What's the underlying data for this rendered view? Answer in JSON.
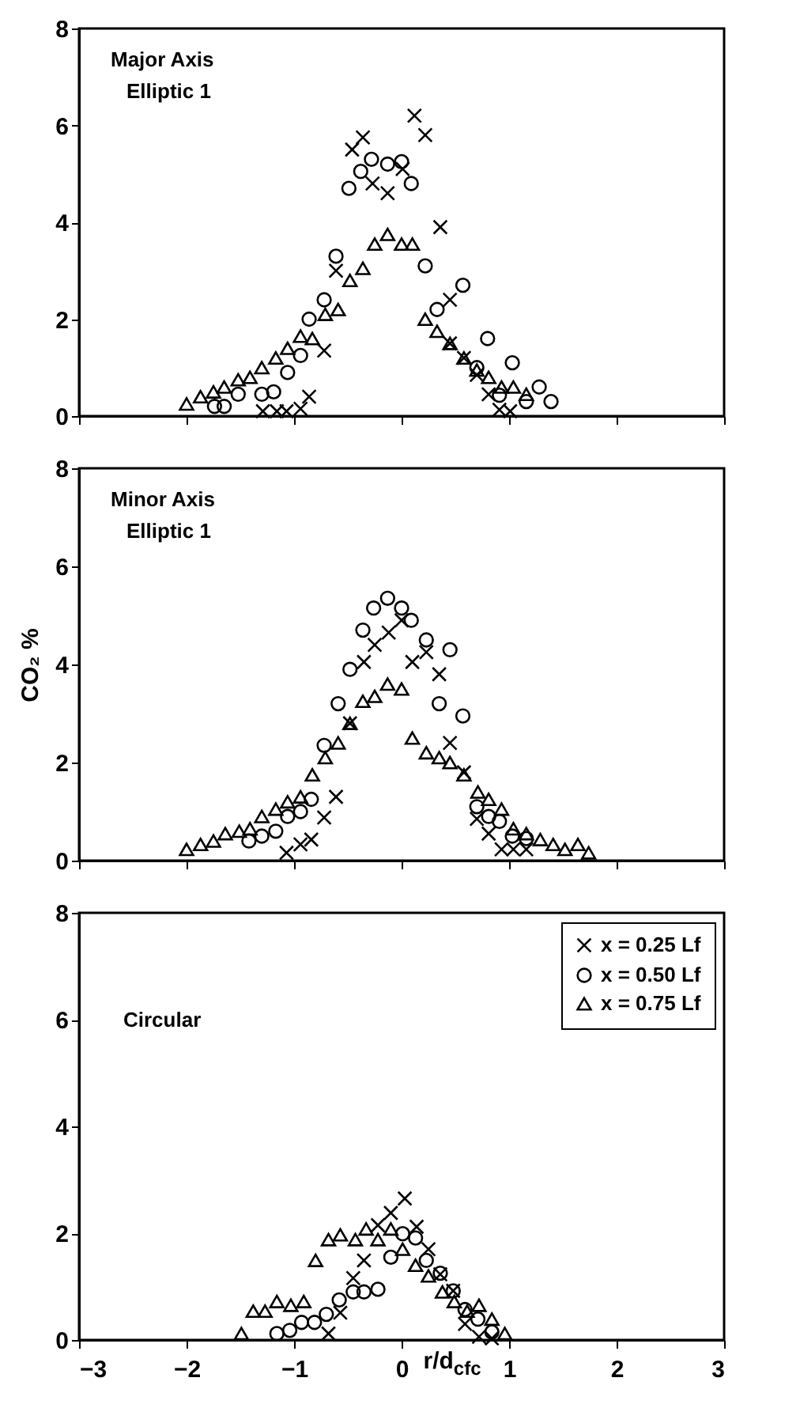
{
  "chart_data": [
    {
      "type": "scatter",
      "annotations": [
        "Major Axis",
        "Elliptic 1"
      ],
      "xlim": [
        -3,
        3
      ],
      "xticks": [
        -3,
        -2,
        -1,
        0,
        1,
        2,
        3
      ],
      "ylim": [
        0,
        8
      ],
      "yticks": [
        0,
        2,
        4,
        6,
        8
      ],
      "tick_labels": "y",
      "grid": false,
      "series": [
        {
          "marker": "cross",
          "color": "#000000",
          "x": [
            -1.29,
            -1.16,
            -1.07,
            -0.94,
            -0.86,
            -0.72,
            -0.61,
            -0.46,
            -0.36,
            -0.27,
            -0.13,
            0.01,
            0.12,
            0.22,
            0.36,
            0.45,
            0.45,
            0.58,
            0.7,
            0.81,
            0.91,
            1.01
          ],
          "values": [
            0.1,
            0.1,
            0.1,
            0.15,
            0.4,
            1.35,
            3.0,
            5.5,
            5.75,
            4.8,
            4.6,
            5.1,
            6.2,
            5.8,
            3.9,
            2.4,
            1.5,
            1.2,
            0.85,
            0.45,
            0.13,
            0.1
          ]
        },
        {
          "marker": "circle",
          "color": "#000000",
          "x": [
            -1.74,
            -1.65,
            -1.52,
            -1.3,
            -1.19,
            -1.06,
            -0.94,
            -0.86,
            -0.72,
            -0.61,
            -0.49,
            -0.38,
            -0.28,
            -0.13,
            0,
            0.09,
            0.22,
            0.33,
            0.57,
            0.7,
            0.8,
            0.91,
            1.03,
            1.16,
            1.28,
            1.39
          ],
          "values": [
            0.2,
            0.2,
            0.45,
            0.45,
            0.5,
            0.9,
            1.25,
            2.0,
            2.4,
            3.3,
            4.7,
            5.05,
            5.3,
            5.2,
            5.25,
            4.8,
            3.1,
            2.2,
            2.7,
            1.0,
            1.6,
            0.43,
            1.1,
            0.3,
            0.6,
            0.3
          ]
        },
        {
          "marker": "triangle",
          "color": "#000000",
          "x": [
            -2.0,
            -1.87,
            -1.75,
            -1.65,
            -1.52,
            -1.41,
            -1.3,
            -1.17,
            -1.06,
            -0.94,
            -0.83,
            -0.71,
            -0.59,
            -0.48,
            -0.36,
            -0.25,
            -0.13,
            0,
            0.1,
            0.22,
            0.33,
            0.45,
            0.58,
            0.7,
            0.81,
            0.93,
            1.04,
            1.16
          ],
          "values": [
            0.25,
            0.4,
            0.5,
            0.6,
            0.75,
            0.8,
            1.0,
            1.2,
            1.4,
            1.65,
            1.6,
            2.1,
            2.2,
            2.8,
            3.05,
            3.55,
            3.75,
            3.55,
            3.55,
            2.0,
            1.75,
            1.5,
            1.2,
            0.95,
            0.8,
            0.6,
            0.6,
            0.45
          ]
        }
      ]
    },
    {
      "type": "scatter",
      "annotations": [
        "Minor Axis",
        "Elliptic 1"
      ],
      "ylabel": "CO₂ %",
      "xlim": [
        -3,
        3
      ],
      "xticks": [
        -3,
        -2,
        -1,
        0,
        1,
        2,
        3
      ],
      "ylim": [
        0,
        8
      ],
      "yticks": [
        0,
        2,
        4,
        6,
        8
      ],
      "tick_labels": "y",
      "grid": false,
      "series": [
        {
          "marker": "cross",
          "color": "#000000",
          "x": [
            -1.07,
            -0.94,
            -0.84,
            -0.72,
            -0.61,
            -0.48,
            -0.35,
            -0.25,
            -0.12,
            0,
            0.1,
            0.23,
            0.35,
            0.45,
            0.58,
            0.7,
            0.81,
            0.93,
            1.04,
            1.16
          ],
          "values": [
            0.16,
            0.33,
            0.43,
            0.88,
            1.3,
            2.8,
            4.05,
            4.4,
            4.65,
            4.9,
            4.05,
            4.25,
            3.8,
            2.4,
            1.8,
            0.85,
            0.55,
            0.23,
            0.23,
            0.23
          ]
        },
        {
          "marker": "circle",
          "color": "#000000",
          "x": [
            -1.42,
            -1.3,
            -1.17,
            -1.06,
            -0.94,
            -0.84,
            -0.72,
            -0.59,
            -0.48,
            -0.36,
            -0.26,
            -0.13,
            0,
            0.09,
            0.23,
            0.35,
            0.45,
            0.57,
            0.7,
            0.81,
            0.91,
            1.03,
            1.16
          ],
          "values": [
            0.4,
            0.5,
            0.6,
            0.9,
            1.0,
            1.25,
            2.35,
            3.2,
            3.9,
            4.7,
            5.15,
            5.35,
            5.15,
            4.9,
            4.5,
            3.2,
            4.3,
            2.95,
            1.1,
            0.9,
            0.8,
            0.5,
            0.45
          ]
        },
        {
          "marker": "triangle",
          "color": "#000000",
          "x": [
            -2.0,
            -1.87,
            -1.75,
            -1.64,
            -1.51,
            -1.41,
            -1.3,
            -1.17,
            -1.06,
            -0.94,
            -0.83,
            -0.71,
            -0.59,
            -0.48,
            -0.36,
            -0.25,
            -0.13,
            0,
            0.1,
            0.23,
            0.35,
            0.45,
            0.58,
            0.71,
            0.81,
            0.93,
            1.04,
            1.16,
            1.29,
            1.41,
            1.52,
            1.64,
            1.74
          ],
          "values": [
            0.23,
            0.33,
            0.4,
            0.55,
            0.6,
            0.65,
            0.9,
            1.05,
            1.2,
            1.3,
            1.75,
            2.1,
            2.4,
            2.8,
            3.25,
            3.35,
            3.6,
            3.5,
            2.5,
            2.2,
            2.1,
            2.0,
            1.75,
            1.4,
            1.25,
            1.05,
            0.65,
            0.55,
            0.43,
            0.33,
            0.23,
            0.33,
            0.16
          ]
        }
      ]
    },
    {
      "type": "scatter",
      "annotations": [
        "Circular"
      ],
      "xlabel": "r/d$_{cfc}$",
      "xlim": [
        -3,
        3
      ],
      "xticks": [
        -3,
        -2,
        -1,
        0,
        1,
        2,
        3
      ],
      "ylim": [
        0,
        8
      ],
      "yticks": [
        0,
        2,
        4,
        6,
        8
      ],
      "grid": false,
      "legend": "top right",
      "series": [
        {
          "name": "x = 0.25 Lf",
          "marker": "cross",
          "color": "#000000",
          "x": [
            -0.68,
            -0.57,
            -0.45,
            -0.35,
            -0.22,
            -0.1,
            0.03,
            0.14,
            0.25,
            0.36,
            0.48,
            0.59,
            0.72,
            0.84
          ],
          "values": [
            0.12,
            0.51,
            1.16,
            1.49,
            2.15,
            2.38,
            2.65,
            2.12,
            1.7,
            1.23,
            0.92,
            0.3,
            0.06,
            0.03
          ]
        },
        {
          "name": "x = 0.50 Lf",
          "marker": "circle",
          "color": "#000000",
          "x": [
            -1.16,
            -1.04,
            -0.93,
            -0.81,
            -0.7,
            -0.58,
            -0.45,
            -0.35,
            -0.22,
            -0.1,
            0.01,
            0.13,
            0.23,
            0.36,
            0.48,
            0.59,
            0.71,
            0.84
          ],
          "values": [
            0.12,
            0.18,
            0.33,
            0.33,
            0.48,
            0.75,
            0.9,
            0.9,
            0.95,
            1.55,
            1.99,
            1.91,
            1.49,
            1.25,
            0.92,
            0.57,
            0.39,
            0.15
          ]
        },
        {
          "name": "x = 0.75 Lf",
          "marker": "triangle",
          "color": "#000000",
          "x": [
            -1.49,
            -1.38,
            -1.27,
            -1.16,
            -1.03,
            -0.91,
            -0.8,
            -0.68,
            -0.57,
            -0.43,
            -0.33,
            -0.22,
            -0.1,
            0.01,
            0.13,
            0.25,
            0.38,
            0.49,
            0.61,
            0.72,
            0.84,
            0.96
          ],
          "values": [
            0.12,
            0.54,
            0.54,
            0.72,
            0.65,
            0.72,
            1.49,
            1.88,
            1.97,
            1.88,
            2.08,
            1.88,
            2.08,
            1.7,
            1.4,
            1.2,
            0.9,
            0.72,
            0.54,
            0.65,
            0.39,
            0.12
          ]
        }
      ]
    }
  ]
}
